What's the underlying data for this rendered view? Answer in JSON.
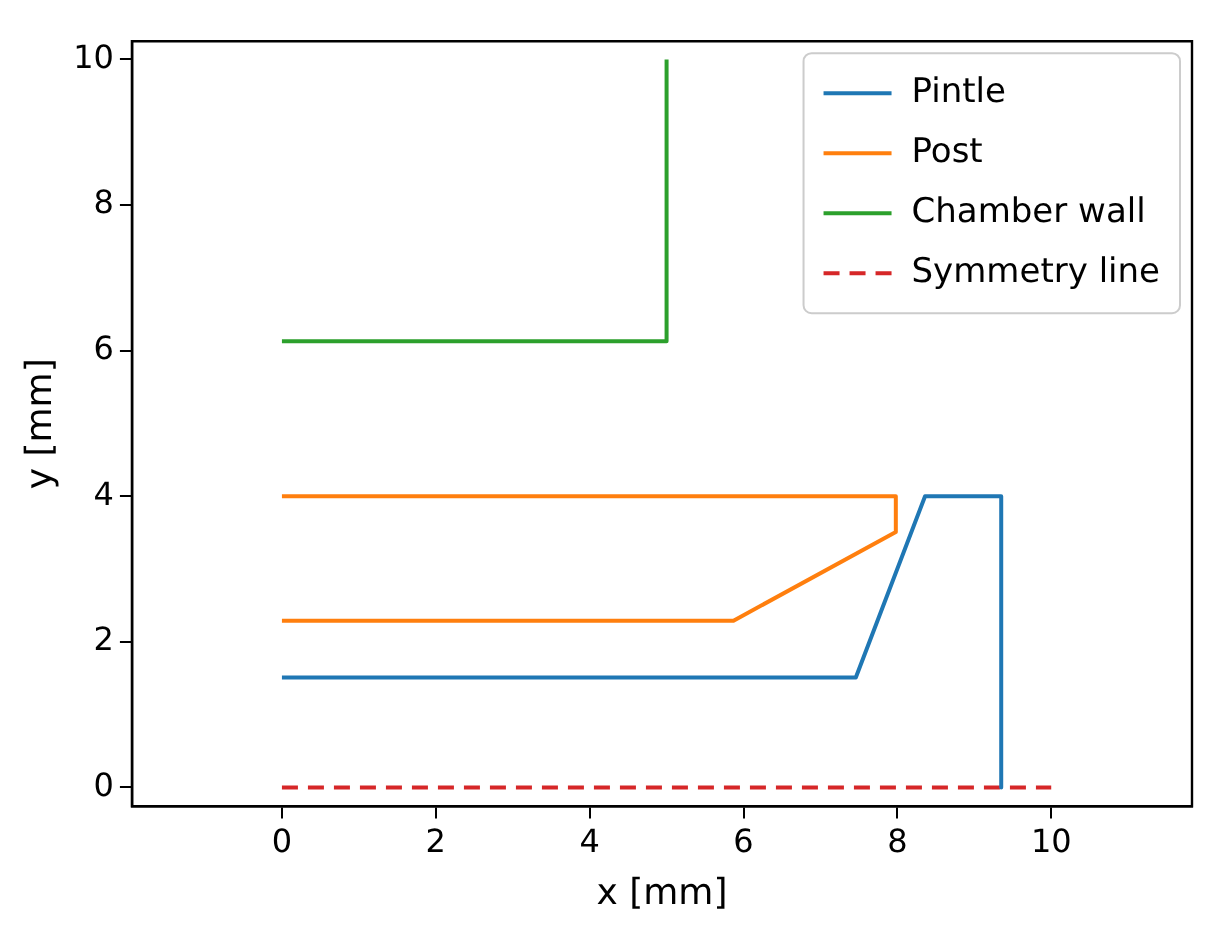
{
  "chart_data": {
    "type": "line",
    "xlabel": "x [mm]",
    "ylabel": "y [mm]",
    "xlim": [
      -1.95,
      11.83
    ],
    "ylim": [
      -0.26,
      10.25
    ],
    "xticks": [
      0,
      2,
      4,
      6,
      8,
      10
    ],
    "yticks": [
      0,
      2,
      4,
      6,
      8,
      10
    ],
    "grid": false,
    "legend": "top right",
    "marker": "none",
    "series": [
      {
        "name": "Pintle",
        "color": "#1f77b4",
        "x": [
          0,
          7.46,
          8.36,
          9.35,
          9.35
        ],
        "values": [
          1.51,
          1.51,
          4.0,
          4.0,
          0
        ]
      },
      {
        "name": "Post",
        "color": "#ff7f0e",
        "x": [
          0,
          7.98,
          7.98,
          5.87,
          0
        ],
        "values": [
          4.0,
          4.0,
          3.51,
          2.29,
          2.29
        ]
      },
      {
        "name": "Chamber wall",
        "color": "#2ca02c",
        "x": [
          0,
          5,
          5
        ],
        "values": [
          6.13,
          6.13,
          10
        ]
      },
      {
        "name": "Symmetry line",
        "color": "#d62728",
        "line_style": "dashed",
        "x": [
          0,
          10
        ],
        "values": [
          0,
          0
        ]
      }
    ]
  }
}
